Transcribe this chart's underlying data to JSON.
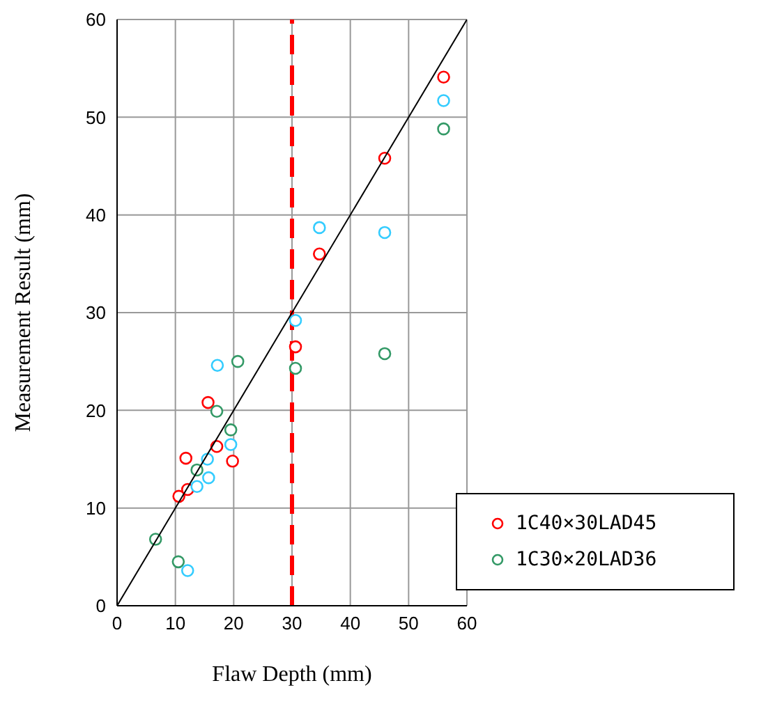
{
  "chart_data": {
    "type": "scatter",
    "xlabel": "Flaw Depth (mm)",
    "ylabel": "Measurement Result (mm)",
    "xlim": [
      0,
      60
    ],
    "xticks": [
      0,
      10,
      20,
      30,
      40,
      50,
      60
    ],
    "ylim": [
      0,
      60
    ],
    "yticks": [
      0,
      10,
      20,
      30,
      40,
      50,
      60
    ],
    "grid": true,
    "legend": "bottom right",
    "marker": "circle",
    "series": [
      {
        "name": "1C40×30LAD45",
        "color": "#ff0000",
        "x": [
          10.6,
          12.1,
          11.8,
          15.6,
          17.1,
          19.8,
          30.6,
          34.7,
          45.9,
          56.0
        ],
        "values": [
          11.2,
          11.9,
          15.1,
          20.8,
          16.3,
          14.8,
          26.5,
          36.0,
          45.8,
          54.1
        ]
      },
      {
        "name": "1C30×20LAD36",
        "color": "#339966",
        "x": [
          6.6,
          10.5,
          13.7,
          17.1,
          19.5,
          20.7,
          30.6,
          45.9,
          56.0
        ],
        "values": [
          6.8,
          4.5,
          13.9,
          19.9,
          18.0,
          25.0,
          24.3,
          25.8,
          48.8
        ]
      },
      {
        "color": "#33ccff",
        "x": [
          12.1,
          13.7,
          15.7,
          15.5,
          17.2,
          19.5,
          30.6,
          34.7,
          45.9,
          56.0
        ],
        "values": [
          3.6,
          12.2,
          13.1,
          15.0,
          24.6,
          16.5,
          29.2,
          38.7,
          38.2,
          51.7
        ]
      },
      {
        "type": "line",
        "color": "#000000",
        "marker": "none",
        "x": [
          0,
          60
        ],
        "values": [
          0,
          60
        ]
      }
    ],
    "ref_lines": [
      {
        "axis": "x",
        "value": 30,
        "color": "#ff0000",
        "line_style": "dashed"
      }
    ]
  }
}
